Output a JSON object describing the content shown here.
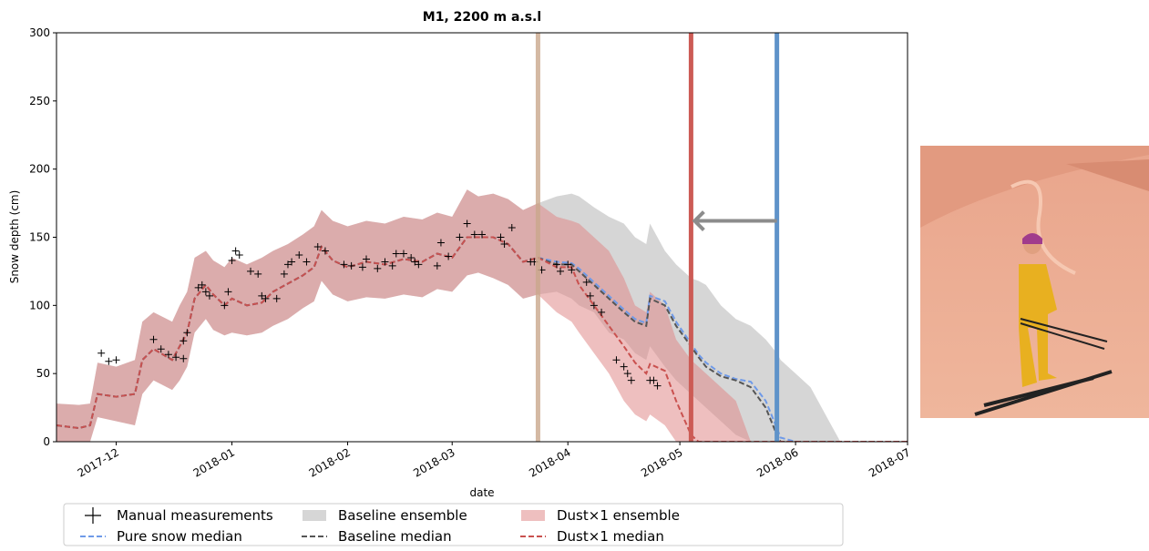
{
  "chart_data": {
    "type": "line",
    "title": "M1, 2200 m a.s.l",
    "xlabel": "date",
    "ylabel": "Snow depth (cm)",
    "xlim": [
      -16,
      212
    ],
    "ylim": [
      0,
      300
    ],
    "xticks": [
      {
        "value": 0,
        "label": "2017-12"
      },
      {
        "value": 31,
        "label": "2018-01"
      },
      {
        "value": 62,
        "label": "2018-02"
      },
      {
        "value": 90,
        "label": "2018-03"
      },
      {
        "value": 121,
        "label": "2018-04"
      },
      {
        "value": 151,
        "label": "2018-05"
      },
      {
        "value": 182,
        "label": "2018-06"
      },
      {
        "value": 212,
        "label": "2018-07"
      }
    ],
    "yticks": [
      0,
      50,
      100,
      150,
      200,
      250,
      300
    ],
    "x": [
      -16,
      -10,
      -7,
      -5,
      0,
      5,
      7,
      10,
      15,
      17,
      19,
      21,
      24,
      26,
      29,
      31,
      35,
      39,
      42,
      46,
      50,
      53,
      55,
      58,
      62,
      67,
      72,
      77,
      82,
      86,
      90,
      94,
      97,
      101,
      105,
      109,
      113,
      118,
      122,
      124,
      128,
      132,
      136,
      139,
      142,
      143,
      147,
      150,
      154,
      156,
      158,
      162,
      166,
      170,
      174,
      177,
      178,
      182,
      186,
      190,
      194,
      200,
      212
    ],
    "series": [
      {
        "name": "Manual measurements",
        "kind": "scatter",
        "color": "#000000",
        "x": [
          -4,
          -2,
          0,
          10,
          12,
          14,
          16,
          18,
          18,
          19,
          22,
          23,
          24,
          25,
          29,
          30,
          31,
          32,
          33,
          36,
          38,
          39,
          40,
          43,
          45,
          46,
          47,
          49,
          51,
          54,
          56,
          61,
          63,
          66,
          67,
          70,
          72,
          74,
          75,
          77,
          79,
          80,
          81,
          86,
          87,
          89,
          92,
          94,
          96,
          98,
          103,
          104,
          106,
          111,
          112,
          114,
          118,
          119,
          121,
          122,
          126,
          127,
          128,
          130,
          134,
          136,
          137,
          138,
          143,
          144,
          145
        ],
        "values": [
          65,
          59,
          60,
          75,
          68,
          64,
          62,
          61,
          74,
          80,
          113,
          115,
          110,
          107,
          100,
          110,
          133,
          140,
          137,
          125,
          123,
          107,
          105,
          105,
          123,
          130,
          132,
          137,
          132,
          143,
          140,
          130,
          129,
          128,
          134,
          127,
          132,
          129,
          138,
          138,
          135,
          132,
          130,
          129,
          146,
          136,
          150,
          160,
          152,
          152,
          150,
          145,
          157,
          132,
          132,
          126,
          130,
          125,
          130,
          126,
          117,
          107,
          100,
          95,
          60,
          55,
          50,
          45,
          45,
          45,
          41
        ]
      },
      {
        "name": "Pure snow median",
        "kind": "line",
        "dash": true,
        "color": "#6f9ae8",
        "values": [
          12,
          10,
          12,
          35,
          33,
          35,
          60,
          68,
          60,
          70,
          80,
          105,
          115,
          108,
          100,
          105,
          100,
          102,
          110,
          116,
          122,
          128,
          143,
          133,
          128,
          132,
          130,
          134,
          132,
          138,
          135,
          150,
          150,
          150,
          145,
          132,
          135,
          132,
          131,
          127,
          117,
          107,
          97,
          90,
          87,
          107,
          103,
          88,
          72,
          64,
          58,
          50,
          46,
          44,
          30,
          10,
          3,
          0,
          0,
          0,
          0,
          0,
          0
        ]
      },
      {
        "name": "Baseline ensemble",
        "kind": "band",
        "color": "#b4b4b4",
        "values": [
          28,
          27,
          28,
          58,
          55,
          60,
          88,
          95,
          88,
          100,
          110,
          135,
          140,
          133,
          128,
          135,
          130,
          135,
          140,
          145,
          152,
          158,
          170,
          162,
          158,
          162,
          160,
          165,
          163,
          168,
          165,
          185,
          180,
          182,
          178,
          170,
          175,
          180,
          182,
          180,
          172,
          165,
          160,
          150,
          145,
          160,
          140,
          130,
          120,
          118,
          115,
          100,
          90,
          85,
          75,
          65,
          60,
          50,
          40,
          20,
          0,
          0,
          0
        ],
        "lower": [
          0,
          0,
          0,
          18,
          15,
          12,
          35,
          45,
          38,
          45,
          55,
          80,
          90,
          82,
          78,
          80,
          78,
          80,
          85,
          90,
          98,
          103,
          118,
          108,
          103,
          106,
          105,
          108,
          106,
          112,
          110,
          122,
          124,
          120,
          115,
          105,
          108,
          110,
          105,
          100,
          95,
          80,
          75,
          65,
          60,
          70,
          55,
          45,
          35,
          30,
          25,
          15,
          5,
          0,
          0,
          0,
          0,
          0,
          0,
          0,
          0,
          0,
          0
        ]
      },
      {
        "name": "Baseline median",
        "kind": "line",
        "dash": true,
        "color": "#555555",
        "values": [
          12,
          10,
          12,
          35,
          33,
          35,
          60,
          68,
          60,
          70,
          80,
          105,
          115,
          108,
          100,
          105,
          100,
          102,
          110,
          116,
          122,
          128,
          143,
          133,
          128,
          132,
          130,
          134,
          132,
          138,
          135,
          150,
          150,
          150,
          145,
          132,
          135,
          130,
          130,
          125,
          115,
          105,
          95,
          88,
          85,
          105,
          100,
          85,
          70,
          62,
          55,
          48,
          45,
          40,
          25,
          5,
          0,
          0,
          0,
          0,
          0,
          0,
          0
        ]
      },
      {
        "name": "Dust×1 ensemble",
        "kind": "band",
        "color": "#e08a8a",
        "values": [
          28,
          27,
          28,
          58,
          55,
          60,
          88,
          95,
          88,
          100,
          110,
          135,
          140,
          133,
          128,
          135,
          130,
          135,
          140,
          145,
          152,
          158,
          170,
          162,
          158,
          162,
          160,
          165,
          163,
          168,
          165,
          185,
          180,
          182,
          178,
          170,
          175,
          165,
          162,
          160,
          150,
          140,
          120,
          100,
          95,
          110,
          100,
          75,
          60,
          55,
          50,
          40,
          30,
          0,
          0,
          0,
          0,
          0,
          0,
          0,
          0,
          0,
          0
        ],
        "lower": [
          0,
          0,
          0,
          18,
          15,
          12,
          35,
          45,
          38,
          45,
          55,
          80,
          90,
          82,
          78,
          80,
          78,
          80,
          85,
          90,
          98,
          103,
          118,
          108,
          103,
          106,
          105,
          108,
          106,
          112,
          110,
          122,
          124,
          120,
          115,
          105,
          108,
          95,
          88,
          80,
          65,
          50,
          30,
          20,
          15,
          20,
          12,
          0,
          0,
          0,
          0,
          0,
          0,
          0,
          0,
          0,
          0,
          0,
          0,
          0,
          0,
          0,
          0
        ]
      },
      {
        "name": "Dust×1 median",
        "kind": "line",
        "dash": true,
        "color": "#c9514f",
        "values": [
          12,
          10,
          12,
          35,
          33,
          35,
          60,
          68,
          60,
          70,
          80,
          105,
          115,
          108,
          100,
          105,
          100,
          102,
          110,
          116,
          122,
          128,
          143,
          133,
          128,
          132,
          130,
          134,
          132,
          138,
          135,
          150,
          150,
          150,
          145,
          132,
          135,
          128,
          128,
          115,
          100,
          85,
          70,
          58,
          50,
          57,
          52,
          30,
          5,
          0,
          0,
          0,
          0,
          0,
          0,
          0,
          0,
          0,
          0,
          0,
          0,
          0,
          0
        ]
      }
    ],
    "vlines": [
      {
        "x": 113,
        "color": "#c9a88c"
      },
      {
        "x": 154,
        "color": "#cc5b55"
      },
      {
        "x": 177,
        "color": "#5f93c9"
      }
    ],
    "arrow": {
      "from": 177,
      "to": 154,
      "y": 162,
      "color": "#8c8c8c"
    }
  }
}
